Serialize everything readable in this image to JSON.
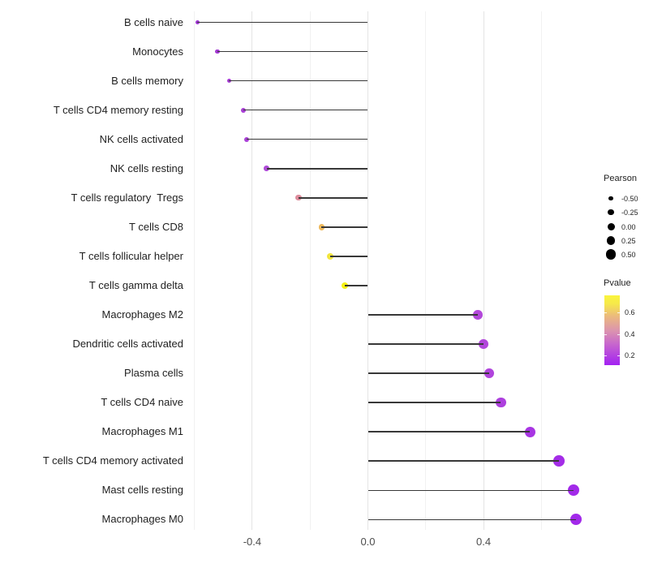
{
  "chart_data": {
    "type": "scatter",
    "subtype": "lollipop",
    "orientation": "horizontal",
    "title": "",
    "xlabel": "",
    "ylabel": "",
    "categories": [
      "B cells naive",
      "Monocytes",
      "B cells memory",
      "T cells CD4 memory resting",
      "NK cells activated",
      "NK cells resting",
      "T cells regulatory  Tregs",
      "T cells CD8",
      "T cells follicular helper",
      "T cells gamma delta",
      "Macrophages M2",
      "Dendritic cells activated",
      "Plasma cells",
      "T cells CD4 naive",
      "Macrophages M1",
      "T cells CD4 memory activated",
      "Mast cells resting",
      "Macrophages M0"
    ],
    "series": [
      {
        "name": "Pearson correlation",
        "values": [
          -0.59,
          -0.52,
          -0.48,
          -0.43,
          -0.42,
          -0.35,
          -0.24,
          -0.16,
          -0.13,
          -0.08,
          0.38,
          0.4,
          0.42,
          0.46,
          0.56,
          0.66,
          0.71,
          0.72
        ],
        "pvalues": [
          0.18,
          0.19,
          0.2,
          0.21,
          0.21,
          0.24,
          0.46,
          0.56,
          0.64,
          0.72,
          0.21,
          0.2,
          0.19,
          0.18,
          0.14,
          0.12,
          0.11,
          0.11
        ],
        "colors": [
          "#A137D4",
          "#A338D3",
          "#A63CD4",
          "#A83FD5",
          "#A941D6",
          "#AE4AD7",
          "#DE8C9C",
          "#EEB95C",
          "#F2E53E",
          "#F6F115",
          "#B348DA",
          "#B246DB",
          "#B044DC",
          "#AD3FDE",
          "#A835E3",
          "#A42DE7",
          "#A22AE9",
          "#A229EA"
        ]
      }
    ],
    "xlim": [
      -0.65,
      0.78
    ],
    "x_ticks": [
      {
        "value": -0.4,
        "label": "-0.4"
      },
      {
        "value": 0.0,
        "label": "0.0"
      },
      {
        "value": 0.4,
        "label": "0.4"
      }
    ],
    "x_minor_ticks": [
      -0.6,
      -0.2,
      0.2,
      0.6
    ],
    "grid": "vertical-only",
    "legend_position": "right",
    "size_legend": {
      "title": "Pearson",
      "entries": [
        {
          "value": -0.5,
          "label": "-0.50"
        },
        {
          "value": -0.25,
          "label": "-0.25"
        },
        {
          "value": 0.0,
          "label": "0.00"
        },
        {
          "value": 0.25,
          "label": "0.25"
        },
        {
          "value": 0.5,
          "label": "0.50"
        }
      ]
    },
    "color_legend": {
      "title": "Pvalue",
      "ticks": [
        {
          "value": 0.6,
          "label": "0.6"
        },
        {
          "value": 0.4,
          "label": "0.4"
        },
        {
          "value": 0.2,
          "label": "0.2"
        }
      ],
      "gradient_bottom_to_top": [
        "#A321F2",
        "#C766CD",
        "#DC95AD",
        "#EBB97E",
        "#F6E94A",
        "#FAF53C"
      ]
    }
  },
  "colors": {
    "background": "#FFFFFF",
    "stem": "#383838",
    "grid_major": "#E4E4E4",
    "grid_minor": "#F1F1F1",
    "axis_text": "#4D4D4D",
    "label_text": "#1F1F1F",
    "legend_dot": "#000000"
  }
}
